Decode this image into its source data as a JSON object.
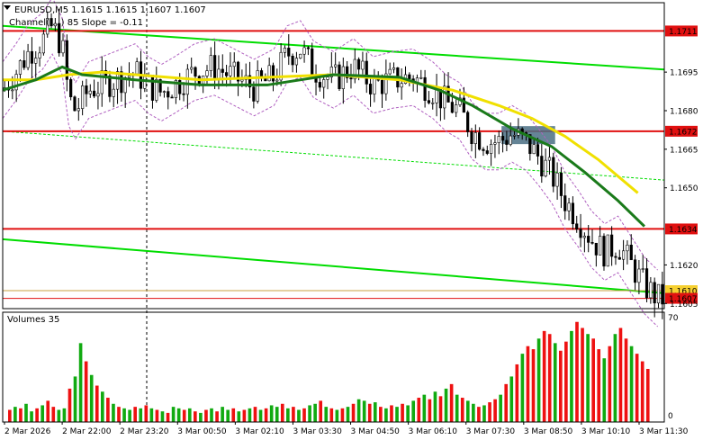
{
  "header": {
    "symbol_line": "EURUSD,M5  1.1615 1.1615 1.1607 1.1607",
    "indicator_line": "Channel(....) 85 Slope = -0.11"
  },
  "volumes_pane": {
    "title": "Volumes 35",
    "scale_top": "70",
    "scale_bottom": "0"
  },
  "colors": {
    "bull_candle": "#000000",
    "ma_green": "#1a7a1a",
    "ma_yellow": "#f0e000",
    "channel_green": "#00dd00",
    "level_red": "#e01010",
    "envelope_purple": "#b060c0",
    "vol_up": "#11aa11",
    "vol_down": "#ee1111",
    "highlight_box": "#4a6f84"
  },
  "chart_data": {
    "type": "candlestick",
    "symbol": "EURUSD",
    "timeframe": "M5",
    "ylim": [
      1.1603,
      1.1722
    ],
    "y_ticks": [
      "1.1695",
      "1.1680",
      "1.1665",
      "1.1650",
      "1.1620",
      "1.1605"
    ],
    "x_tick_labels": [
      "2 Mar 2026",
      "2 Mar 22:00",
      "2 Mar 23:20",
      "3 Mar 00:50",
      "3 Mar 02:10",
      "3 Mar 03:30",
      "3 Mar 04:50",
      "3 Mar 06:10",
      "3 Mar 07:30",
      "3 Mar 08:50",
      "3 Mar 10:10",
      "3 Mar 11:30"
    ],
    "levels": [
      {
        "label": "1.1711",
        "value": 1.1711
      },
      {
        "label": "1.1672",
        "value": 1.1672
      },
      {
        "label": "1.1634",
        "value": 1.1634
      },
      {
        "label": "1.1610",
        "value": 1.161
      },
      {
        "label": "1.1607",
        "value": 1.1607
      }
    ],
    "trendlines": [
      {
        "from": [
          0,
          1.1713
        ],
        "to": [
          1,
          1.1696
        ]
      },
      {
        "from": [
          0,
          1.1672
        ],
        "to": [
          1,
          1.1653
        ]
      },
      {
        "from": [
          0,
          1.163
        ],
        "to": [
          1,
          1.1609
        ]
      }
    ],
    "close_path": [
      [
        0,
        1.1688
      ],
      [
        0.02,
        1.1695
      ],
      [
        0.04,
        1.1703
      ],
      [
        0.06,
        1.1707
      ],
      [
        0.075,
        1.1713
      ],
      [
        0.09,
        1.1705
      ],
      [
        0.1,
        1.1685
      ],
      [
        0.11,
        1.168
      ],
      [
        0.13,
        1.1688
      ],
      [
        0.15,
        1.169
      ],
      [
        0.18,
        1.1693
      ],
      [
        0.2,
        1.1695
      ],
      [
        0.22,
        1.169
      ],
      [
        0.24,
        1.1687
      ],
      [
        0.26,
        1.169
      ],
      [
        0.29,
        1.1695
      ],
      [
        0.32,
        1.1697
      ],
      [
        0.35,
        1.1693
      ],
      [
        0.38,
        1.1689
      ],
      [
        0.41,
        1.1693
      ],
      [
        0.43,
        1.1702
      ],
      [
        0.45,
        1.1704
      ],
      [
        0.47,
        1.1696
      ],
      [
        0.5,
        1.1692
      ],
      [
        0.53,
        1.1697
      ],
      [
        0.56,
        1.169
      ],
      [
        0.59,
        1.1692
      ],
      [
        0.62,
        1.1693
      ],
      [
        0.65,
        1.1688
      ],
      [
        0.67,
        1.1683
      ],
      [
        0.69,
        1.168
      ],
      [
        0.71,
        1.1672
      ],
      [
        0.73,
        1.1668
      ],
      [
        0.75,
        1.1668
      ],
      [
        0.77,
        1.1671
      ],
      [
        0.79,
        1.1668
      ],
      [
        0.81,
        1.1662
      ],
      [
        0.83,
        1.1655
      ],
      [
        0.85,
        1.1645
      ],
      [
        0.87,
        1.1638
      ],
      [
        0.89,
        1.163
      ],
      [
        0.91,
        1.1625
      ],
      [
        0.93,
        1.1628
      ],
      [
        0.95,
        1.162
      ],
      [
        0.97,
        1.1612
      ],
      [
        0.99,
        1.1607
      ]
    ],
    "ma_green_path": [
      [
        0,
        1.1688
      ],
      [
        0.05,
        1.1692
      ],
      [
        0.09,
        1.1697
      ],
      [
        0.12,
        1.1694
      ],
      [
        0.2,
        1.1692
      ],
      [
        0.3,
        1.169
      ],
      [
        0.4,
        1.169
      ],
      [
        0.5,
        1.1694
      ],
      [
        0.6,
        1.1693
      ],
      [
        0.66,
        1.1688
      ],
      [
        0.71,
        1.1682
      ],
      [
        0.77,
        1.1673
      ],
      [
        0.83,
        1.1666
      ],
      [
        0.88,
        1.1656
      ],
      [
        0.93,
        1.1645
      ],
      [
        0.97,
        1.1635
      ]
    ],
    "ma_yellow_path": [
      [
        0,
        1.1692
      ],
      [
        0.05,
        1.1692
      ],
      [
        0.1,
        1.1694
      ],
      [
        0.15,
        1.1695
      ],
      [
        0.2,
        1.1694
      ],
      [
        0.3,
        1.1692
      ],
      [
        0.4,
        1.1693
      ],
      [
        0.5,
        1.1694
      ],
      [
        0.6,
        1.1692
      ],
      [
        0.68,
        1.1688
      ],
      [
        0.75,
        1.1682
      ],
      [
        0.8,
        1.1677
      ],
      [
        0.85,
        1.167
      ],
      [
        0.9,
        1.1661
      ],
      [
        0.96,
        1.1648
      ]
    ],
    "highlight_zone": {
      "x_from": 0.754,
      "x_to": 0.835,
      "y_from": 1.1674,
      "y_to": 1.1667
    },
    "volume_bars": [
      8,
      10,
      9,
      12,
      7,
      9,
      11,
      14,
      10,
      8,
      9,
      22,
      30,
      52,
      40,
      31,
      24,
      20,
      16,
      12,
      10,
      9,
      8,
      10,
      9,
      11,
      9,
      8,
      7,
      6,
      10,
      9,
      8,
      9,
      7,
      6,
      8,
      9,
      7,
      10,
      8,
      9,
      7,
      8,
      9,
      10,
      8,
      9,
      11,
      10,
      12,
      9,
      10,
      8,
      9,
      11,
      12,
      14,
      10,
      9,
      8,
      9,
      10,
      12,
      15,
      14,
      12,
      13,
      10,
      9,
      11,
      10,
      12,
      11,
      14,
      16,
      18,
      15,
      20,
      17,
      22,
      25,
      18,
      16,
      14,
      12,
      10,
      11,
      13,
      15,
      18,
      25,
      30,
      38,
      45,
      50,
      48,
      55,
      60,
      58,
      52,
      47,
      53,
      60,
      66,
      62,
      58,
      55,
      48,
      42,
      50,
      58,
      62,
      55,
      50,
      45,
      40,
      35
    ],
    "volume_colors_up": [
      0,
      1,
      0,
      1,
      1,
      0,
      1,
      0,
      0,
      1,
      1,
      0,
      1,
      1,
      0,
      1,
      0,
      1,
      0,
      1,
      0,
      1,
      1,
      0,
      1,
      0,
      1,
      0,
      1,
      0,
      1,
      1,
      0,
      1,
      0,
      1,
      0,
      1,
      0,
      1,
      1,
      0,
      1,
      0,
      1,
      0,
      1,
      0,
      1,
      1,
      0,
      1,
      0,
      1,
      0,
      1,
      1,
      0,
      1,
      0,
      1,
      0,
      1,
      0,
      1,
      1,
      0,
      1,
      0,
      1,
      0,
      1,
      0,
      1,
      1,
      0,
      1,
      0,
      1,
      0,
      1,
      0,
      1,
      0,
      1,
      1,
      0,
      1,
      0,
      0,
      1,
      0,
      1,
      0,
      1,
      0,
      0,
      1,
      0,
      0,
      1,
      0,
      0,
      1,
      0,
      0,
      1,
      0,
      0,
      1,
      0,
      1,
      0,
      0,
      1,
      0,
      0,
      0
    ]
  }
}
